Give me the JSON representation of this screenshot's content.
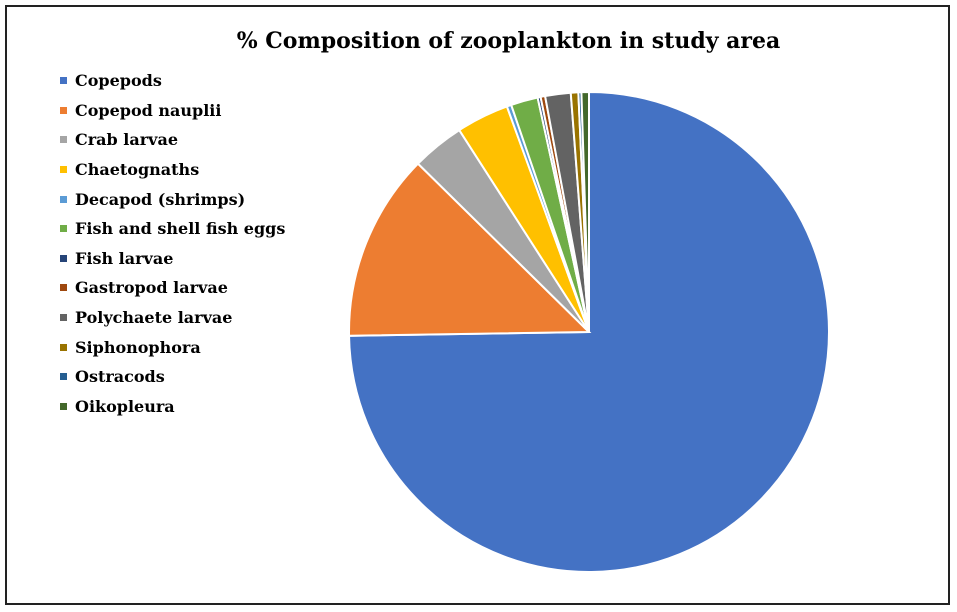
{
  "chart_data": {
    "type": "pie",
    "title": "% Composition of zooplankton in study area",
    "legend_position": "left",
    "categories": [
      "Copepods",
      "Copepod nauplii",
      "Crab larvae",
      "Chaetognaths",
      "Decapod (shrimps)",
      "Fish and shell fish eggs",
      "Fish larvae",
      "Gastropod larvae",
      "Polychaete larvae",
      "Siphonophora",
      "Ostracods",
      "Oikopleura"
    ],
    "values": [
      74.0,
      12.5,
      3.5,
      3.5,
      0.3,
      1.8,
      0.2,
      0.3,
      1.7,
      0.5,
      0.2,
      0.5
    ],
    "colors": [
      "#4472C4",
      "#ED7D31",
      "#A5A5A5",
      "#FFC000",
      "#5B9BD5",
      "#70AD47",
      "#264478",
      "#9E480E",
      "#636363",
      "#997300",
      "#255E91",
      "#43682B"
    ]
  }
}
